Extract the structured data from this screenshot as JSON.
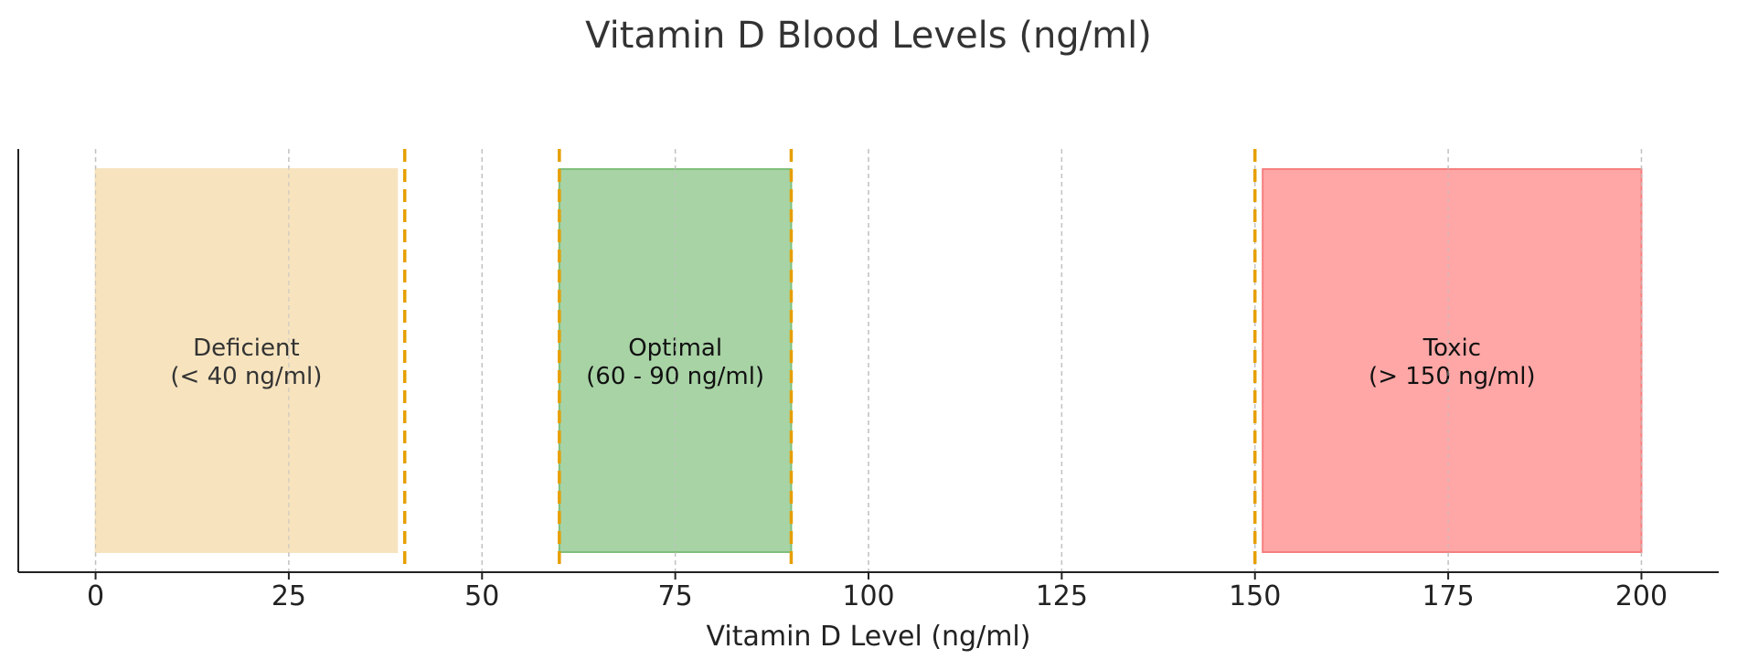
{
  "chart_data": {
    "type": "bar",
    "orientation": "horizontal-range",
    "title": "Vitamin D Blood Levels (ng/ml)",
    "xlabel": "Vitamin D Level (ng/ml)",
    "ylabel": "",
    "xlim": [
      -10,
      210
    ],
    "x_ticks": [
      0,
      25,
      50,
      75,
      100,
      125,
      150,
      175,
      200
    ],
    "x_tick_labels": [
      "0",
      "25",
      "50",
      "75",
      "100",
      "125",
      "150",
      "175",
      "200"
    ],
    "grid": {
      "x": true,
      "y": false,
      "style": "dashed"
    },
    "ranges": [
      {
        "name": "Deficient",
        "label_line1": "Deficient",
        "label_line2": "(< 40 ng/ml)",
        "start": 0,
        "end": 39,
        "fill": "#f7e4bf",
        "edge": "#f7e4bf",
        "text_color": "#333333"
      },
      {
        "name": "Optimal",
        "label_line1": "Optimal",
        "label_line2": "(60 - 90 ng/ml)",
        "start": 60,
        "end": 90,
        "fill": "#a8d3a5",
        "edge": "#7fbf7b",
        "text_color": "#111111"
      },
      {
        "name": "Toxic",
        "label_line1": "Toxic",
        "label_line2": "(> 150 ng/ml)",
        "start": 151,
        "end": 200,
        "fill": "#fea7a6",
        "edge": "#f57f7f",
        "text_color": "#111111"
      }
    ],
    "threshold_lines": [
      40,
      60,
      90,
      150
    ],
    "threshold_color": "#e69f00"
  }
}
